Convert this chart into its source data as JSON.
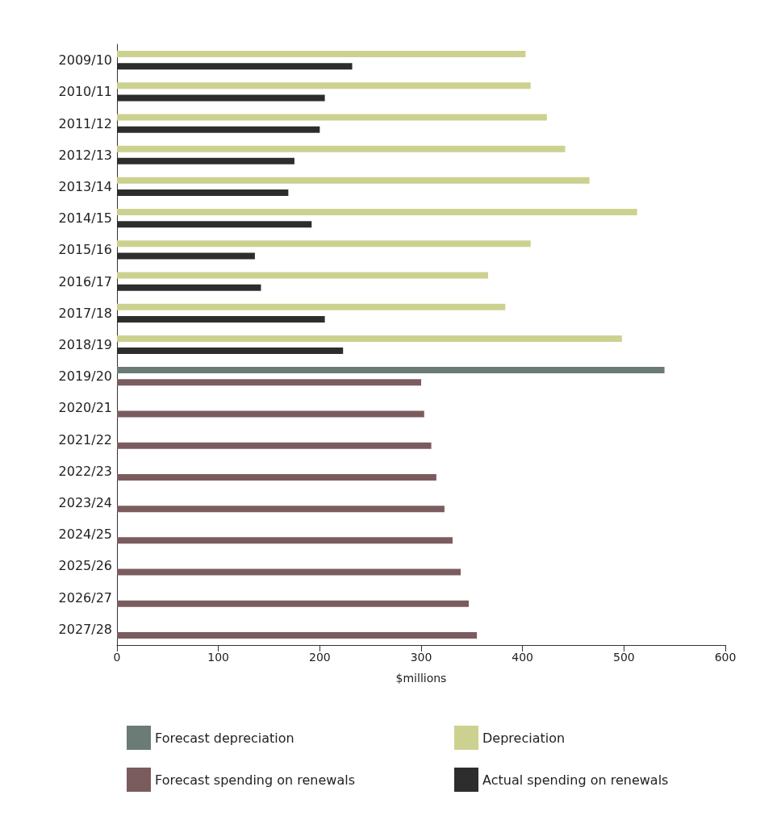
{
  "chart_data": {
    "type": "bar",
    "orientation": "horizontal",
    "xlabel": "$millions",
    "categories": [
      "2009/10",
      "2010/11",
      "2011/12",
      "2012/13",
      "2013/14",
      "2014/15",
      "2015/16",
      "2016/17",
      "2017/18",
      "2018/19",
      "2019/20",
      "2020/21",
      "2021/22",
      "2022/23",
      "2023/24",
      "2024/25",
      "2025/26",
      "2026/27",
      "2027/28"
    ],
    "series": [
      {
        "name": "Forecast depreciation",
        "color": "#6b7b76",
        "values": [
          null,
          null,
          null,
          null,
          null,
          null,
          null,
          null,
          null,
          null,
          540,
          null,
          null,
          null,
          null,
          null,
          null,
          null,
          null
        ]
      },
      {
        "name": "Depreciation",
        "color": "#cdd18f",
        "values": [
          403,
          408,
          424,
          442,
          466,
          513,
          408,
          366,
          383,
          498,
          null,
          null,
          null,
          null,
          null,
          null,
          null,
          null,
          null
        ]
      },
      {
        "name": "Forecast spending on renewals",
        "color": "#7b5c5e",
        "values": [
          null,
          null,
          null,
          null,
          null,
          null,
          null,
          null,
          null,
          null,
          300,
          303,
          310,
          315,
          323,
          331,
          339,
          347,
          355
        ]
      },
      {
        "name": "Actual spending on renewals",
        "color": "#2d2d2d",
        "values": [
          232,
          205,
          200,
          175,
          169,
          192,
          136,
          142,
          205,
          223,
          null,
          null,
          null,
          null,
          null,
          null,
          null,
          null,
          null
        ]
      }
    ],
    "xlim": [
      0,
      600
    ],
    "xticks": [
      0,
      100,
      200,
      300,
      400,
      500,
      600
    ],
    "grid": false,
    "legend": "bottom"
  }
}
